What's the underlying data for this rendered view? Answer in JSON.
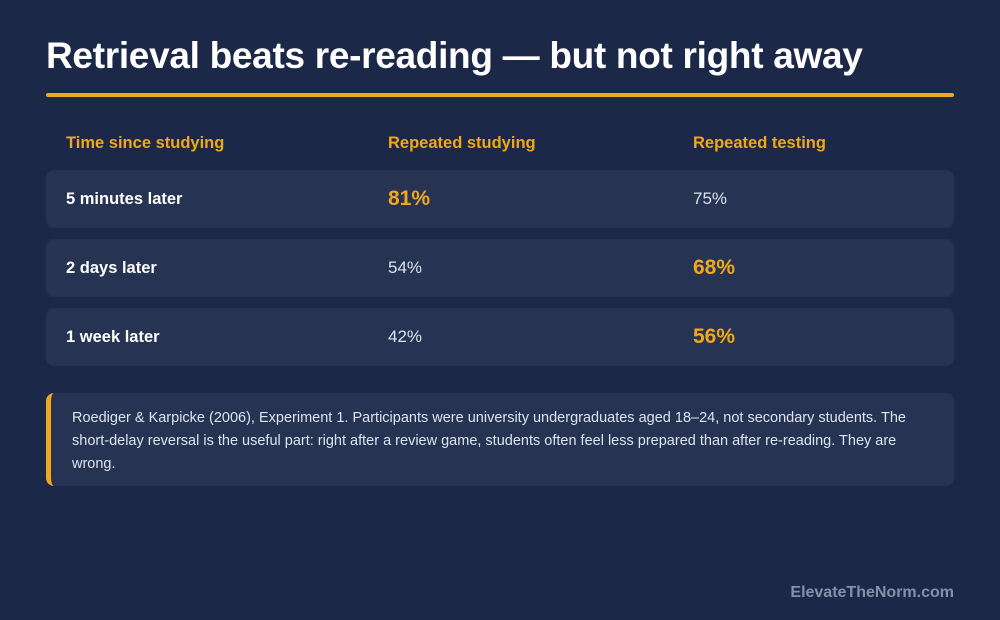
{
  "title": "Retrieval beats re-reading — but not right away",
  "colors": {
    "background": "#1c2847",
    "row_background": "#263352",
    "accent": "#f0a81a",
    "text": "#ffffff",
    "muted_text": "#dde3ee",
    "brand_text": "#8391aa"
  },
  "table": {
    "headers": [
      "Time since studying",
      "Repeated studying",
      "Repeated testing"
    ],
    "rows": [
      {
        "label": "5 minutes later",
        "studying": "81%",
        "testing": "75%",
        "winner": "studying"
      },
      {
        "label": "2 days later",
        "studying": "54%",
        "testing": "68%",
        "winner": "testing"
      },
      {
        "label": "1 week later",
        "studying": "42%",
        "testing": "56%",
        "winner": "testing"
      }
    ]
  },
  "note": "Roediger & Karpicke (2006), Experiment 1. Participants were university undergraduates aged 18–24, not secondary students. The short-delay reversal is the useful part: right after a review game, students often feel less prepared than after re-reading. They are wrong.",
  "brand": "ElevateTheNorm.com"
}
